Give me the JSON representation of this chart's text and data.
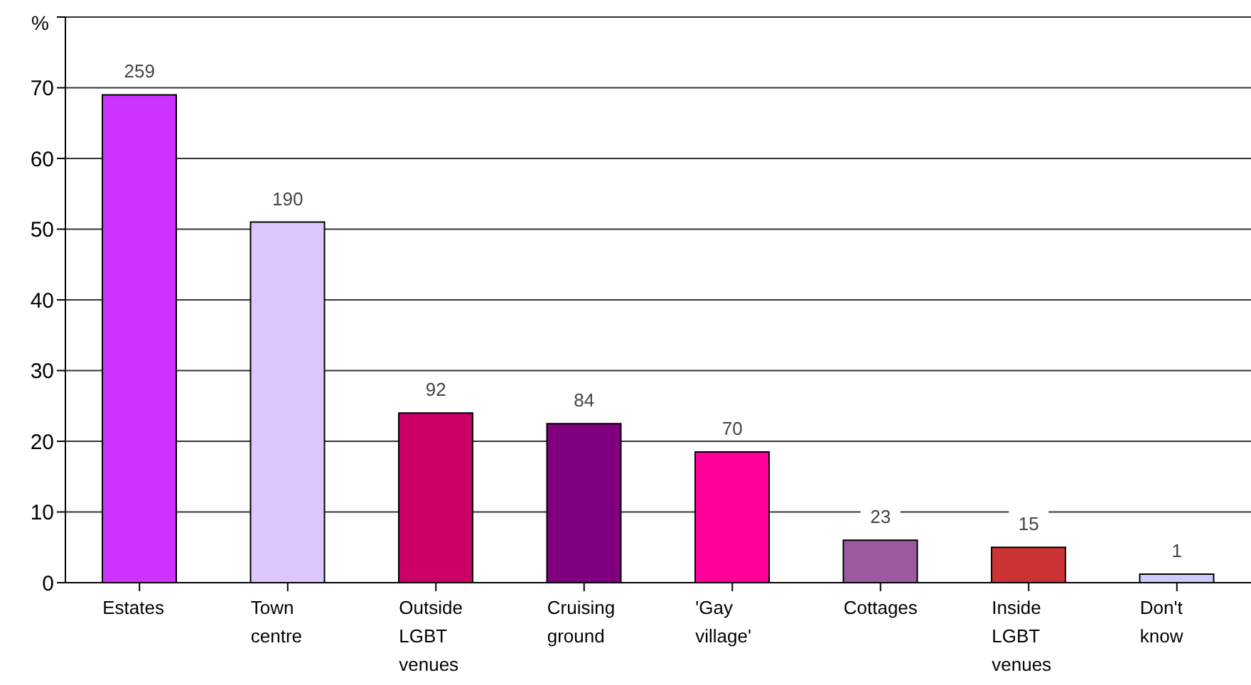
{
  "chart_data": {
    "type": "bar",
    "ylabel": "%",
    "categories": [
      "Estates",
      "Town centre",
      "Outside LGBT venues",
      "Cruising ground",
      "'Gay village'",
      "Cottages",
      "Inside LGBT venues",
      "Don't know"
    ],
    "values": [
      69,
      51,
      24,
      22.5,
      18.5,
      6,
      5,
      1.2
    ],
    "colors": [
      "#cc33ff",
      "#dcc8ff",
      "#cc0066",
      "#800080",
      "#ff0099",
      "#9c5aa0",
      "#cc3333",
      "#ccccff"
    ],
    "annotations": [
      {
        "text": "259",
        "x": "Estates",
        "y": 69
      },
      {
        "text": "190",
        "x": "Town centre",
        "y": 51
      },
      {
        "text": "92",
        "x": "Outside LGBT venues",
        "y": 24
      },
      {
        "text": "84",
        "x": "Cruising ground",
        "y": 22.5
      },
      {
        "text": "70",
        "x": "'Gay village'",
        "y": 18.5
      },
      {
        "text": "23",
        "x": "Cottages",
        "y": 6
      },
      {
        "text": "15",
        "x": "Inside LGBT venues",
        "y": 5
      },
      {
        "text": "1",
        "x": "Don't know",
        "y": 1.2
      }
    ],
    "ylim": [
      0,
      80
    ],
    "yticks": [
      0,
      10,
      20,
      30,
      40,
      50,
      60,
      70,
      {
        "value": 80,
        "label": null
      }
    ],
    "grid": "y"
  }
}
